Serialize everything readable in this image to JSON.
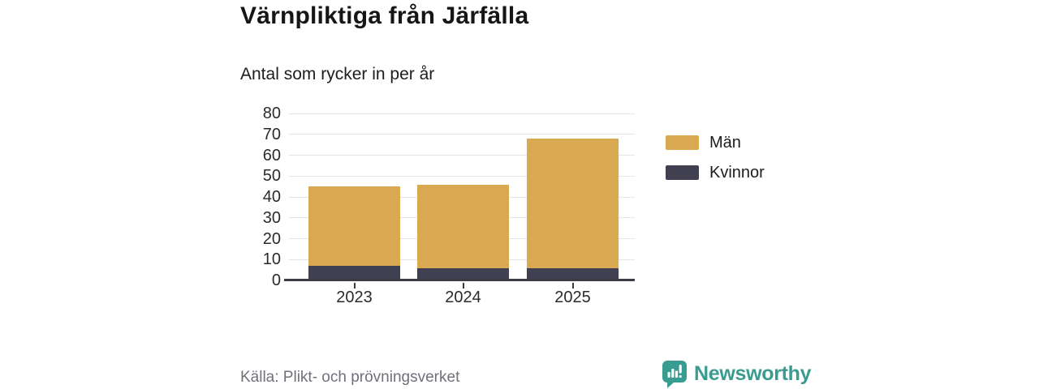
{
  "chart_data": {
    "type": "bar",
    "stacked": true,
    "title": "Värnpliktiga från Järfälla",
    "subtitle": "Antal som rycker in per år",
    "categories": [
      "2023",
      "2024",
      "2025"
    ],
    "series": [
      {
        "name": "Män",
        "color": "#D9A951",
        "values": [
          38,
          40,
          62
        ]
      },
      {
        "name": "Kvinnor",
        "color": "#414050",
        "values": [
          7,
          6,
          6
        ]
      }
    ],
    "stack_totals": [
      45,
      46,
      68
    ],
    "stack_order_bottom_to_top": [
      "Kvinnor",
      "Män"
    ],
    "ylim": [
      0,
      80
    ],
    "yticks": [
      0,
      10,
      20,
      30,
      40,
      50,
      60,
      70,
      80
    ],
    "xlabel": "",
    "ylabel": "",
    "grid": true,
    "legend_position": "right"
  },
  "footer": {
    "source": "Källa: Plikt- och prövningsverket",
    "brand": "Newsworthy",
    "brand_icon": "speech-bubble-bar-chart-icon"
  },
  "colors": {
    "axis": "#3C3C46",
    "gridline": "#E4E4E4",
    "brand_teal": "#399C90",
    "title_text": "#161616",
    "tick_text": "#2B2B2B",
    "source_text": "#70707B",
    "background": "#FFFFFF"
  }
}
